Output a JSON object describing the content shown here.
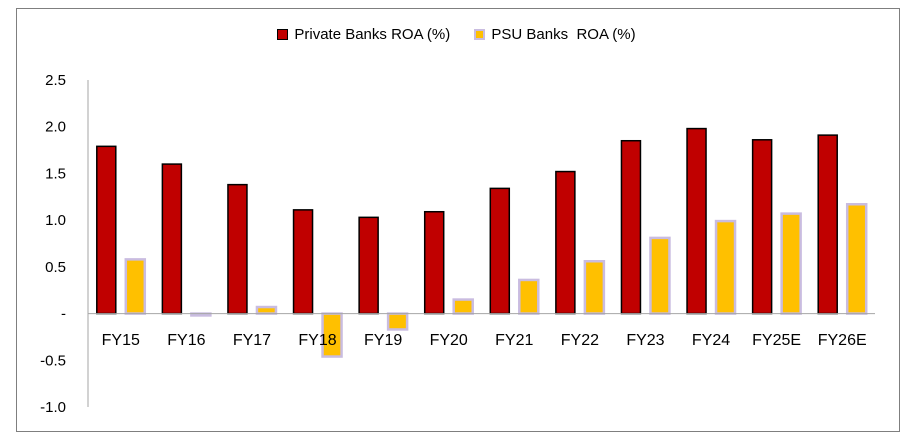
{
  "chart_data": {
    "type": "bar",
    "title": "",
    "xlabel": "",
    "ylabel": "",
    "categories": [
      "FY15",
      "FY16",
      "FY17",
      "FY18",
      "FY19",
      "FY20",
      "FY21",
      "FY22",
      "FY23",
      "FY24",
      "FY25E",
      "FY26E"
    ],
    "series": [
      {
        "name": "Private Banks ROA (%)",
        "color": "#c00000",
        "values": [
          1.79,
          1.6,
          1.38,
          1.11,
          1.03,
          1.09,
          1.34,
          1.52,
          1.85,
          1.98,
          1.86,
          1.91
        ]
      },
      {
        "name": "PSU Banks  ROA (%)",
        "color": "#ffc000",
        "values": [
          0.58,
          -0.02,
          0.07,
          -0.46,
          -0.17,
          0.15,
          0.36,
          0.56,
          0.81,
          0.99,
          1.07,
          1.17
        ]
      }
    ],
    "ylim": [
      -1.0,
      2.5
    ],
    "yticks": [
      "-1.0",
      "-0.5",
      "-",
      "0.5",
      "1.0",
      "1.5",
      "2.0",
      "2.5"
    ],
    "ytick_values": [
      -1.0,
      -0.5,
      0,
      0.5,
      1.0,
      1.5,
      2.0,
      2.5
    ],
    "grid": false,
    "legend_position": "top-center"
  }
}
